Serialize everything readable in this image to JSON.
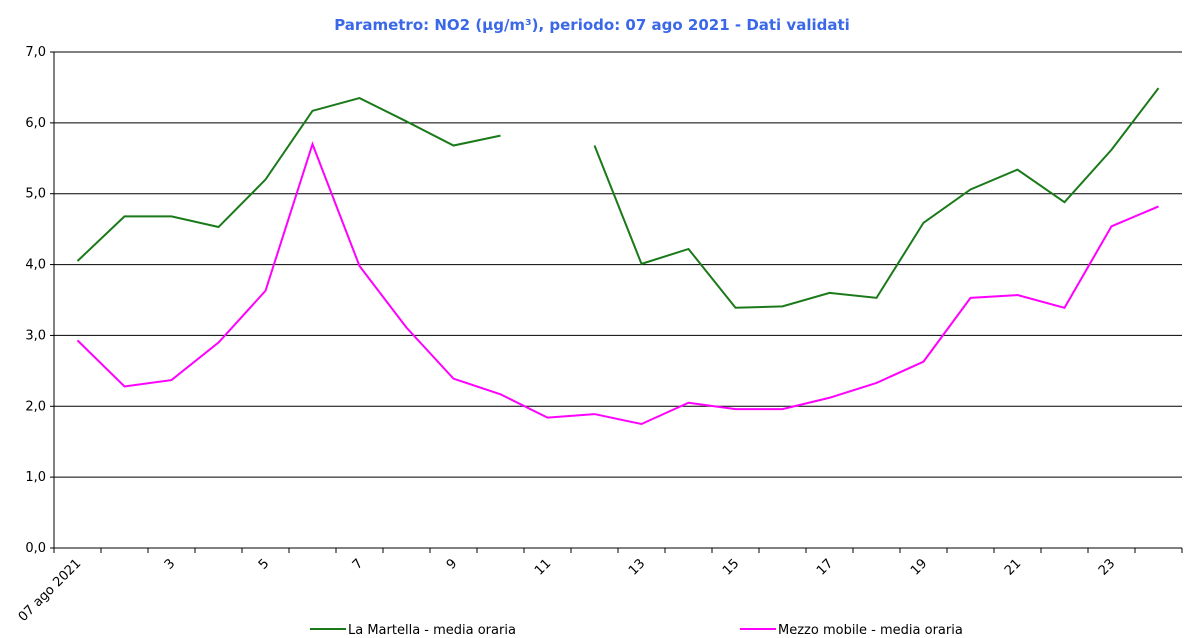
{
  "chart_data": {
    "type": "line",
    "title": "Parametro: NO2 (µg/m³), periodo: 07 ago 2021 - Dati validati",
    "categories": [
      "07 ago 2021",
      null,
      "3",
      null,
      "5",
      null,
      "7",
      null,
      "9",
      null,
      "11",
      null,
      "13",
      null,
      "15",
      null,
      "17",
      null,
      "19",
      null,
      "21",
      null,
      "23",
      null
    ],
    "series": [
      {
        "name": "La Martella - media oraria",
        "color": "#1a7a1a",
        "values": [
          4.05,
          4.68,
          4.68,
          4.53,
          5.2,
          6.17,
          6.35,
          6.02,
          5.68,
          5.82,
          null,
          5.68,
          4.01,
          4.22,
          3.39,
          3.41,
          3.6,
          3.53,
          4.59,
          5.06,
          5.34,
          4.88,
          5.62,
          6.49
        ]
      },
      {
        "name": "Mezzo mobile - media oraria",
        "color": "#ff00ff",
        "values": [
          2.93,
          2.28,
          2.37,
          2.9,
          3.63,
          5.7,
          3.98,
          3.11,
          2.39,
          2.17,
          1.84,
          1.89,
          1.75,
          2.05,
          1.96,
          1.96,
          2.12,
          2.33,
          2.63,
          3.53,
          3.57,
          3.39,
          4.54,
          4.82
        ]
      }
    ],
    "ylim": [
      0,
      7
    ],
    "yticks": [
      {
        "value": 0,
        "label": "0,0"
      },
      {
        "value": 1,
        "label": "1,0"
      },
      {
        "value": 2,
        "label": "2,0"
      },
      {
        "value": 3,
        "label": "3,0"
      },
      {
        "value": 4,
        "label": "4,0"
      },
      {
        "value": 5,
        "label": "5,0"
      },
      {
        "value": 6,
        "label": "6,0"
      },
      {
        "value": 7,
        "label": "7,0"
      }
    ],
    "grid": true
  }
}
